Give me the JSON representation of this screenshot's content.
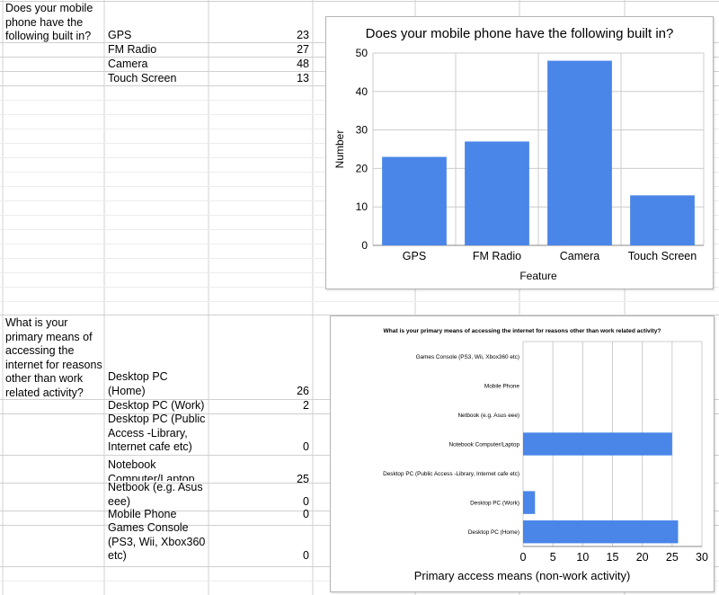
{
  "sheet": {
    "table1": {
      "question": "Does your mobile\nphone have the\nfollowing built in?",
      "rows": [
        {
          "label": "GPS",
          "value": "23"
        },
        {
          "label": "FM Radio",
          "value": "27"
        },
        {
          "label": "Camera",
          "value": "48"
        },
        {
          "label": "Touch Screen",
          "value": "13"
        }
      ]
    },
    "table2": {
      "question": "What is your\nprimary means of\naccessing the\ninternet for reasons\nother than work\nrelated activity?",
      "rows": [
        {
          "label": "Desktop PC\n(Home)",
          "value": "26"
        },
        {
          "label": "Desktop PC (Work)",
          "value": "2"
        },
        {
          "label": "Desktop PC (Public\nAccess -Library,\nInternet cafe etc)",
          "value": "0"
        },
        {
          "label": "Notebook\nComputer/Laptop",
          "value": "25"
        },
        {
          "label": "Netbook (e.g. Asus\neee)",
          "value": "0"
        },
        {
          "label": "Mobile Phone",
          "value": "0"
        },
        {
          "label": "Games Console\n(PS3, Wii, Xbox360\netc)",
          "value": "0"
        }
      ]
    }
  },
  "chart_data": [
    {
      "type": "bar",
      "orientation": "vertical",
      "title": "Does your mobile phone have the following built in?",
      "xlabel": "Feature",
      "ylabel": "Number",
      "categories": [
        "GPS",
        "FM Radio",
        "Camera",
        "Touch Screen"
      ],
      "values": [
        23,
        27,
        48,
        13
      ],
      "ylim": [
        0,
        50
      ],
      "yticks": [
        0,
        10,
        20,
        30,
        40,
        50
      ],
      "grid": true,
      "bar_color": "#4a86e8"
    },
    {
      "type": "bar",
      "orientation": "horizontal",
      "title": "What is your primary means of accessing the internet for reasons other than work related activity?",
      "xlabel": "Primary access means (non-work activity)",
      "ylabel": "",
      "categories": [
        "Games Console (PS3, Wii, Xbox360 etc)",
        "Mobile Phone",
        "Netbook (e.g. Asus eee)",
        "Notebook Computer/Laptop",
        "Desktop PC (Public Access -Library, Internet cafe etc)",
        "Desktop PC (Work)",
        "Desktop PC (Home)"
      ],
      "values": [
        0,
        0,
        0,
        25,
        0,
        2,
        26
      ],
      "xlim": [
        0,
        30
      ],
      "xticks": [
        0,
        5,
        10,
        15,
        20,
        25,
        30
      ],
      "grid": true,
      "bar_color": "#4a86e8"
    }
  ]
}
